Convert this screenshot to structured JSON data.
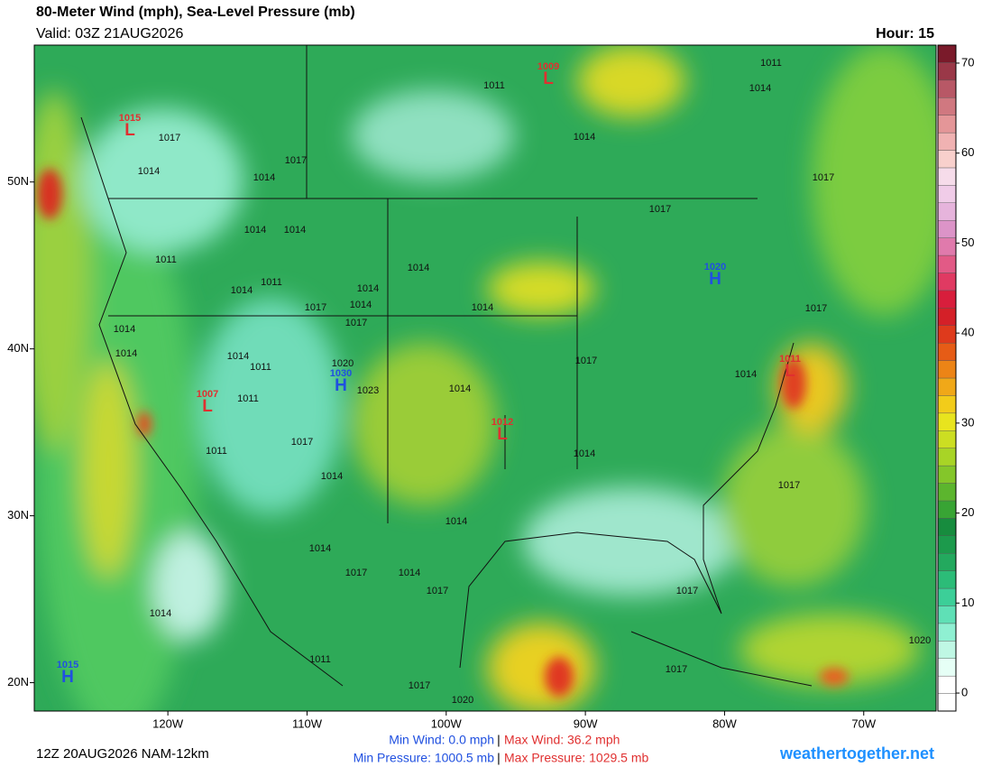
{
  "header": {
    "title": "80-Meter Wind (mph), Sea-Level Pressure (mb)",
    "valid": "Valid: 03Z 21AUG2026",
    "hour": "Hour: 15"
  },
  "map": {
    "xlim": [
      -129.6,
      -64.8
    ],
    "ylim": [
      18.3,
      58.2
    ],
    "xticks": [
      {
        "value": -120,
        "label": "120W"
      },
      {
        "value": -110,
        "label": "110W"
      },
      {
        "value": -100,
        "label": "100W"
      },
      {
        "value": -90,
        "label": "90W"
      },
      {
        "value": -80,
        "label": "80W"
      },
      {
        "value": -70,
        "label": "70W"
      }
    ],
    "yticks": [
      {
        "value": 50,
        "label": "50N"
      },
      {
        "value": 40,
        "label": "40N"
      },
      {
        "value": 30,
        "label": "30N"
      },
      {
        "value": 20,
        "label": "20N"
      }
    ],
    "pressure_centers": [
      {
        "kind": "L",
        "value": "1015",
        "color": "#e03030"
      },
      {
        "kind": "L",
        "value": "1009",
        "color": "#e03030"
      },
      {
        "kind": "H",
        "value": "1020",
        "color": "#2050e0"
      },
      {
        "kind": "H",
        "value": "1030",
        "color": "#2050e0"
      },
      {
        "kind": "L",
        "value": "1007",
        "color": "#e03030"
      },
      {
        "kind": "L",
        "value": "1012",
        "color": "#e03030"
      },
      {
        "kind": "L",
        "value": "1011",
        "color": "#e03030"
      },
      {
        "kind": "H",
        "value": "1015",
        "color": "#2050e0"
      }
    ],
    "isobar_labels": [
      "1017",
      "1014",
      "1014",
      "1017",
      "1011",
      "1011",
      "1014",
      "1014",
      "1017",
      "1017",
      "1014",
      "1014",
      "1011",
      "1014",
      "1011",
      "1014",
      "1014",
      "1017",
      "1014",
      "1017",
      "1014",
      "1017",
      "1014",
      "1014",
      "1014",
      "1011",
      "1020",
      "1023",
      "1017",
      "1014",
      "1014",
      "1011",
      "1011",
      "1017",
      "1014",
      "1014",
      "1017",
      "1014",
      "1014",
      "1017",
      "1014",
      "1017",
      "1017",
      "1014",
      "1011",
      "1020",
      "1017",
      "1017",
      "1020"
    ]
  },
  "colorbar": {
    "clim": [
      -2,
      72
    ],
    "ticks": [
      0,
      10,
      20,
      30,
      40,
      50,
      60,
      70
    ],
    "colors": [
      "#ffffff",
      "#ffffff",
      "#e6fff6",
      "#bff7e4",
      "#8ff0d2",
      "#5fe0b6",
      "#3ccf98",
      "#2cbc78",
      "#23a95e",
      "#1c9a4c",
      "#178c3e",
      "#38a434",
      "#5cb52e",
      "#84c62a",
      "#a8d426",
      "#ccde22",
      "#e8e41e",
      "#f2cc1a",
      "#f0a818",
      "#ec8416",
      "#e65c16",
      "#de3a1c",
      "#d42028",
      "#d81e3c",
      "#e03a62",
      "#e25a86",
      "#e07aac",
      "#dc94c8",
      "#e6b4dc",
      "#f0cce8",
      "#f6dcea",
      "#f8d0cc",
      "#f0b2b2",
      "#e49698",
      "#d07880",
      "#b85866",
      "#9a3848",
      "#7a1a2a"
    ]
  },
  "footer": {
    "run": "12Z 20AUG2026 NAM-12km",
    "min_wind": "Min Wind:  0.0 mph",
    "max_wind": "Max Wind:  36.2 mph",
    "min_pressure": "Min Pressure: 1000.5 mb",
    "max_pressure": "Max Pressure: 1029.5 mb",
    "separator": "|",
    "site": "weathertogether.net"
  }
}
